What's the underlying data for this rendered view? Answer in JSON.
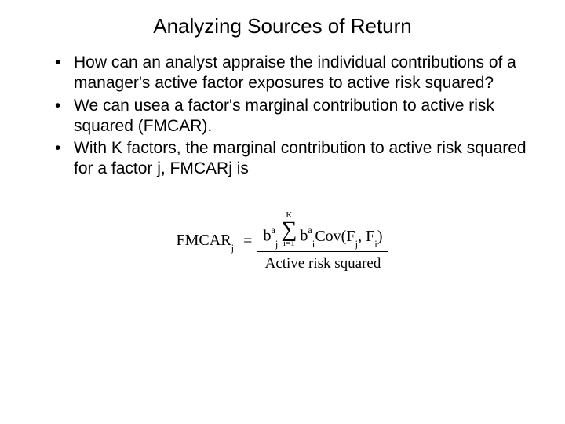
{
  "title": "Analyzing Sources of Return",
  "bullets": [
    "How can an analyst appraise the individual contributions of a manager's active factor exposures to active risk squared?",
    "We can usea a factor's marginal contribution to active risk squared (FMCAR).",
    "With K factors, the marginal contribution to active risk squared for a factor j, FMCARj is"
  ],
  "formula": {
    "lhs": "FMCAR",
    "lhs_sub": "j",
    "numerator": {
      "b_sub": "j",
      "b_sup": "a",
      "sum_upper": "K",
      "sum_lower": "i=1",
      "b2_sub": "i",
      "b2_sup": "a",
      "cov": "Cov(F",
      "cov_sub1": "j",
      "cov_mid": ", F",
      "cov_sub2": "i",
      "cov_end": ")"
    },
    "denominator": "Active risk squared"
  },
  "colors": {
    "background": "#ffffff",
    "text": "#000000"
  }
}
